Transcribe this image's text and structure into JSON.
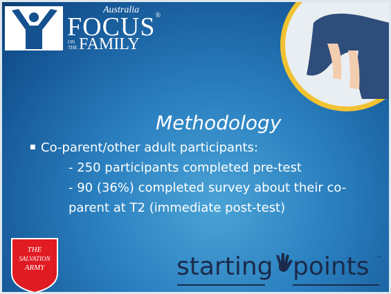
{
  "logo_top": {
    "country": "Australia",
    "brand": "FOCUS",
    "on_the": [
      "ON",
      "THE"
    ],
    "family": "FAMILY",
    "trademark": "®"
  },
  "title": "Methodology",
  "bullet": {
    "text": "Co-parent/other adult participants:",
    "sub_lines": [
      "- 250 participants completed pre-test",
      "- 90 (36%) completed survey about their co-",
      "parent at T2 (immediate post-test)"
    ]
  },
  "logo_salvation": [
    "THE",
    "SALVATION",
    "ARMY"
  ],
  "logo_starting": {
    "word1": "starting",
    "word2": "points",
    "tm": "™"
  }
}
